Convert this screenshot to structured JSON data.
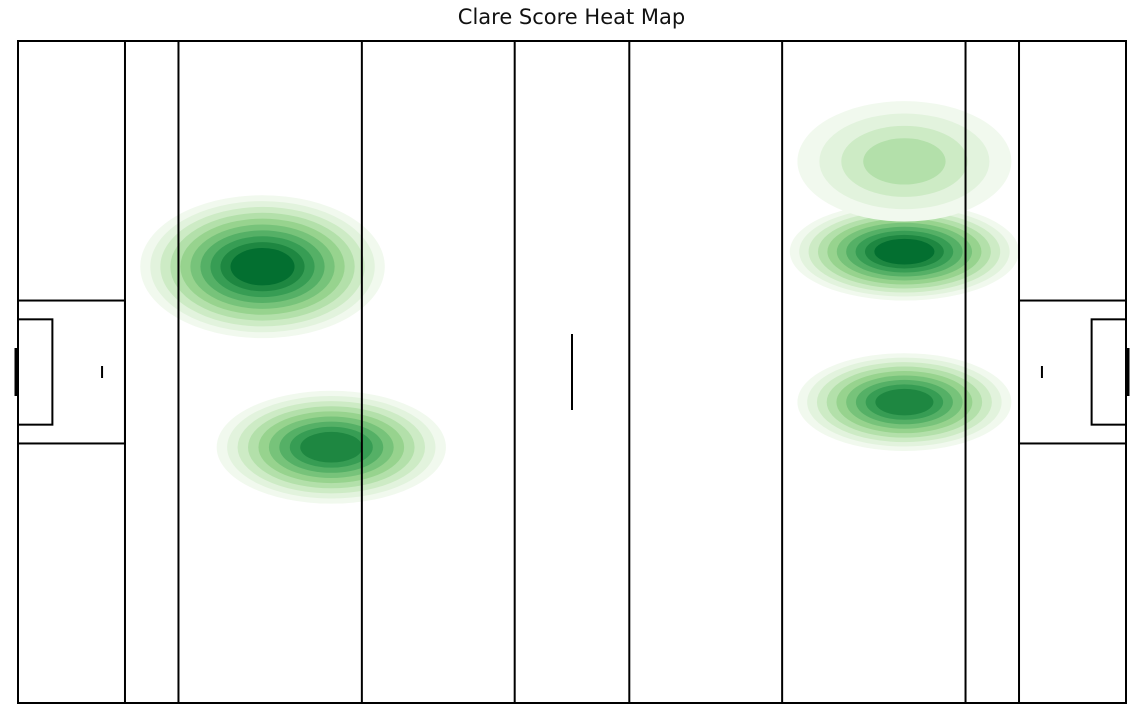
{
  "title": "Clare Score Heat Map",
  "chart_data": {
    "type": "heatmap",
    "title": "Clare Score Heat Map",
    "xlabel": "",
    "ylabel": "",
    "xlim": [
      0,
      145
    ],
    "ylim": [
      0,
      88
    ],
    "axes_visible": false,
    "grid": false,
    "colormap": "Greens",
    "pitch": {
      "length": 145,
      "width": 88,
      "lines_x": [
        14,
        21,
        45,
        65,
        80,
        100,
        124,
        131
      ],
      "halfway_x": 72.5
    },
    "density_peaks": [
      {
        "x": 32,
        "y": 58,
        "level": 1.0
      },
      {
        "x": 41,
        "y": 34,
        "level": 0.88
      },
      {
        "x": 116,
        "y": 60,
        "level": 0.95
      },
      {
        "x": 116,
        "y": 40,
        "level": 0.85
      },
      {
        "x": 116,
        "y": 72,
        "level": 0.42
      }
    ],
    "contour_levels": 10
  },
  "colors": {
    "line": "#000000",
    "levels": [
      "#f1f9ee",
      "#e2f3dd",
      "#cdebc5",
      "#b3e0aa",
      "#97d38e",
      "#77c37a",
      "#55b066",
      "#379d54",
      "#1e8741",
      "#036f30"
    ]
  }
}
